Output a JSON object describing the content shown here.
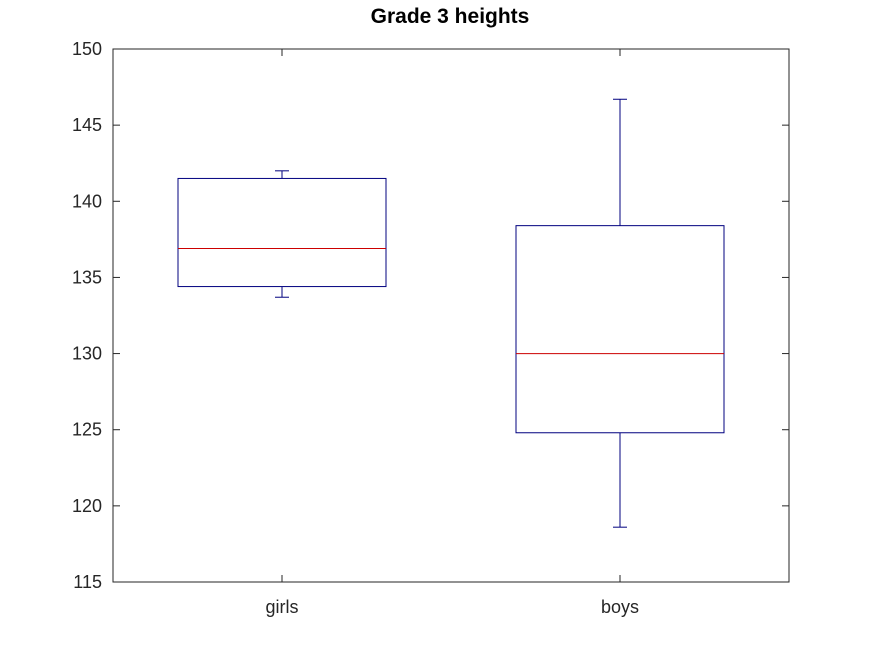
{
  "chart_data": {
    "type": "box",
    "title": "Grade 3 heights",
    "xlabel": "",
    "ylabel": "",
    "ylim": [
      115,
      150
    ],
    "yticks": [
      "115",
      "120",
      "125",
      "130",
      "135",
      "140",
      "145",
      "150"
    ],
    "categories": [
      "girls",
      "boys"
    ],
    "boxes": [
      {
        "category": "girls",
        "whisker_low": 133.7,
        "q1": 134.4,
        "median": 136.9,
        "q3": 141.5,
        "whisker_high": 142.0
      },
      {
        "category": "boys",
        "whisker_low": 118.6,
        "q1": 124.8,
        "median": 130.0,
        "q3": 138.4,
        "whisker_high": 146.7
      }
    ],
    "grid": false,
    "colors": {
      "box": "#00007f",
      "median": "#cc0000",
      "axis": "#262626"
    }
  }
}
